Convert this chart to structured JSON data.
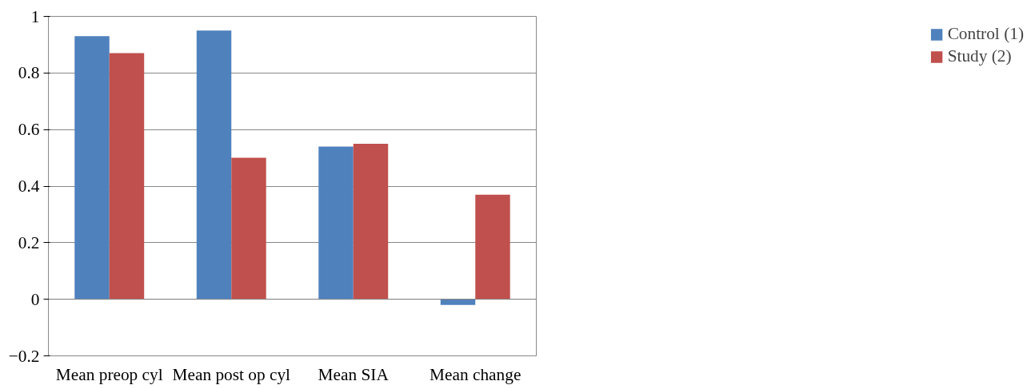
{
  "chart_data": {
    "type": "bar",
    "categories": [
      "Mean preop cyl",
      "Mean post op cyl",
      "Mean SIA",
      "Mean change"
    ],
    "series": [
      {
        "name": "Control (1)",
        "color": "#4f81bd",
        "values": [
          0.93,
          0.95,
          0.54,
          -0.02
        ]
      },
      {
        "name": "Study (2)",
        "color": "#c0504d",
        "values": [
          0.87,
          0.5,
          0.55,
          0.37
        ]
      }
    ],
    "ylim": [
      -0.2,
      1
    ],
    "yticks": [
      -0.2,
      0,
      0.2,
      0.4,
      0.6,
      0.8,
      1
    ],
    "grid": "y",
    "legend": "right"
  }
}
